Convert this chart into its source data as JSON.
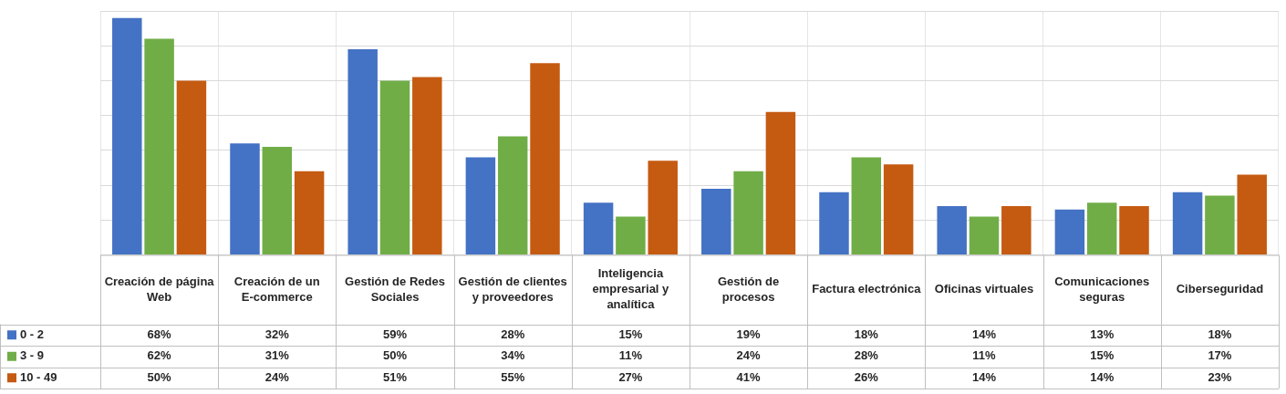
{
  "chart_data": {
    "type": "bar",
    "categories": [
      "Creación de página Web",
      "Creación de un E-commerce",
      "Gestión de Redes Sociales",
      "Gestión de clientes y proveedores",
      "Inteligencia empresarial y analítica",
      "Gestión de procesos",
      "Factura electrónica",
      "Oficinas virtuales",
      "Comunicaciones seguras",
      "Ciberseguridad"
    ],
    "series": [
      {
        "name": "0 - 2",
        "color": "#4472c4",
        "values": [
          68,
          32,
          59,
          28,
          15,
          19,
          18,
          14,
          13,
          18
        ],
        "value_labels": [
          "68%",
          "32%",
          "59%",
          "28%",
          "15%",
          "19%",
          "18%",
          "14%",
          "13%",
          "18%"
        ]
      },
      {
        "name": "3 - 9",
        "color": "#70ad47",
        "values": [
          62,
          31,
          50,
          34,
          11,
          24,
          28,
          11,
          15,
          17
        ],
        "value_labels": [
          "62%",
          "31%",
          "50%",
          "34%",
          "11%",
          "24%",
          "28%",
          "11%",
          "15%",
          "17%"
        ]
      },
      {
        "name": "10 - 49",
        "color": "#c55a11",
        "values": [
          50,
          24,
          51,
          55,
          27,
          41,
          26,
          14,
          14,
          23
        ],
        "value_labels": [
          "50%",
          "24%",
          "51%",
          "55%",
          "27%",
          "41%",
          "26%",
          "14%",
          "14%",
          "23%"
        ]
      }
    ],
    "ylim": [
      0,
      70
    ],
    "yticks": [
      {
        "value": 0,
        "label": null
      },
      {
        "value": 10,
        "label": null
      },
      {
        "value": 20,
        "label": null
      },
      {
        "value": 30,
        "label": null
      },
      {
        "value": 40,
        "label": null
      },
      {
        "value": 50,
        "label": null
      },
      {
        "value": 60,
        "label": null
      },
      {
        "value": 70,
        "label": null
      }
    ],
    "grid": true,
    "legend": "bottom left",
    "tick_labels": "x"
  }
}
